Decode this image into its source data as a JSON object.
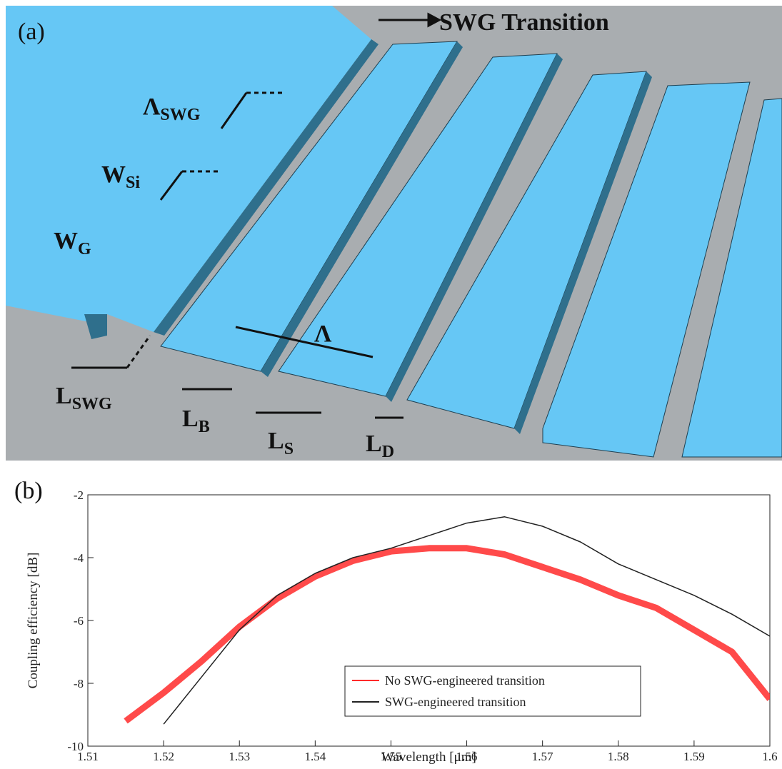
{
  "diagram": {
    "panel_label": "(a)",
    "transition_label": "SWG Transition",
    "labels": [
      {
        "base": "Λ",
        "sub": "SWG"
      },
      {
        "base": "W",
        "sub": "Si"
      },
      {
        "base": "W",
        "sub": "G"
      },
      {
        "base": "L",
        "sub": "SWG"
      },
      {
        "base": "L",
        "sub": "B"
      },
      {
        "base": "L",
        "sub": "S"
      },
      {
        "base": "L",
        "sub": "D"
      },
      {
        "base": "Λ"
      }
    ]
  },
  "chart_data": {
    "type": "line",
    "panel_label": "(b)",
    "x_label": "Wavelength [μm]",
    "y_label": "Coupling efficiency [dB]",
    "x": [
      1.51,
      1.515,
      1.52,
      1.525,
      1.53,
      1.535,
      1.54,
      1.545,
      1.55,
      1.555,
      1.56,
      1.565,
      1.57,
      1.575,
      1.58,
      1.585,
      1.59,
      1.595,
      1.6
    ],
    "series": [
      {
        "name": "No SWG-engineered transition",
        "color": "#ff2a2a",
        "values": [
          null,
          -9.2,
          -8.3,
          -7.3,
          -6.2,
          -5.3,
          -4.6,
          -4.1,
          -3.8,
          -3.7,
          -3.7,
          -3.9,
          -4.3,
          -4.7,
          -5.2,
          -5.6,
          -6.3,
          -7.0,
          -8.5
        ]
      },
      {
        "name": "SWG-engineered transition",
        "color": "#222222",
        "values": [
          null,
          null,
          -9.3,
          -7.8,
          -6.3,
          -5.2,
          -4.5,
          -4.0,
          -3.7,
          -3.3,
          -2.9,
          -2.7,
          -3.0,
          -3.5,
          -4.2,
          -4.7,
          -5.2,
          -5.8,
          -6.5
        ]
      }
    ],
    "xlim": [
      1.51,
      1.6
    ],
    "ylim": [
      -10,
      -2
    ],
    "xticks": [
      1.51,
      1.52,
      1.53,
      1.54,
      1.55,
      1.56,
      1.57,
      1.58,
      1.59,
      1.6
    ],
    "yticks": [
      -10,
      -8,
      -6,
      -4,
      -2
    ],
    "legend": "lower right"
  }
}
